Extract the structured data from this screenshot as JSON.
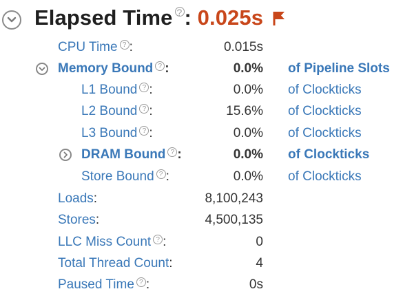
{
  "header": {
    "title": "Elapsed Time",
    "help_glyph": "?",
    "colon": ":",
    "value": "0.025s",
    "toggle_icon": "chevron-down-icon",
    "flag_icon": "flag-icon",
    "flag_color": "#c8461a"
  },
  "colors": {
    "link": "#3a78b8",
    "value": "#333333",
    "highlight": "#c8461a"
  },
  "rows": {
    "cpu_time": {
      "label": "CPU Time",
      "value": "0.015s"
    },
    "memory_bound": {
      "label": "Memory Bound",
      "value": "0.0%",
      "unit": "of Pipeline Slots",
      "toggle_icon": "chevron-down-icon"
    },
    "l1_bound": {
      "label": "L1 Bound",
      "value": "0.0%",
      "unit": "of Clockticks"
    },
    "l2_bound": {
      "label": "L2 Bound",
      "value": "15.6%",
      "unit": "of Clockticks"
    },
    "l3_bound": {
      "label": "L3 Bound",
      "value": "0.0%",
      "unit": "of Clockticks"
    },
    "dram_bound": {
      "label": "DRAM Bound",
      "value": "0.0%",
      "unit": "of Clockticks",
      "toggle_icon": "chevron-right-icon"
    },
    "store_bound": {
      "label": "Store Bound",
      "value": "0.0%",
      "unit": "of Clockticks"
    },
    "loads": {
      "label": "Loads",
      "value": "8,100,243"
    },
    "stores": {
      "label": "Stores",
      "value": "4,500,135"
    },
    "llc_miss_count": {
      "label": "LLC Miss Count",
      "value": "0"
    },
    "total_thread_count": {
      "label": "Total Thread Count",
      "value": "4"
    },
    "paused_time": {
      "label": "Paused Time",
      "value": "0s"
    }
  }
}
